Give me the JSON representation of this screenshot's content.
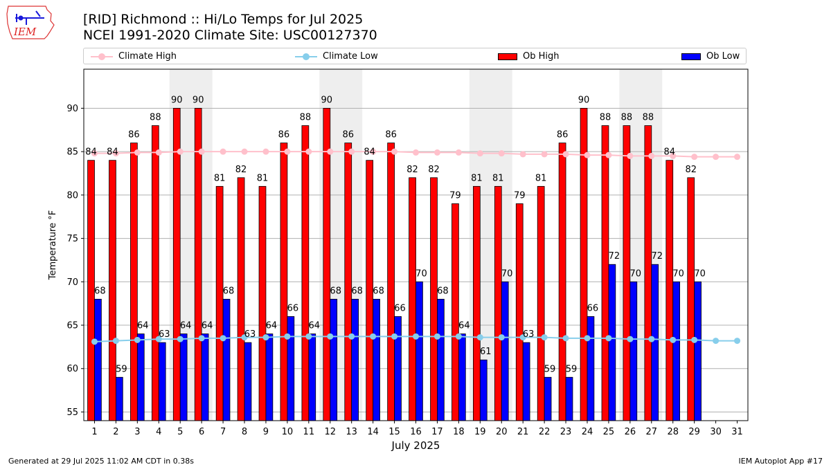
{
  "header": {
    "title_line1": "[RID] Richmond :: Hi/Lo Temps for Jul 2025",
    "title_line2": "NCEI 1991-2020 Climate Site: USC00127370"
  },
  "logo": {
    "text": "IEM"
  },
  "footer": {
    "left": "Generated at 29 Jul 2025 11:02 AM CDT in 0.38s",
    "right": "IEM Autoplot App #17"
  },
  "legend": {
    "items": [
      {
        "label": "Climate High",
        "color": "#ffc0cb",
        "kind": "line"
      },
      {
        "label": "Climate Low",
        "color": "#87ceeb",
        "kind": "line"
      },
      {
        "label": "Ob High",
        "color": "#ff0000",
        "kind": "bar"
      },
      {
        "label": "Ob Low",
        "color": "#0000ff",
        "kind": "bar"
      }
    ],
    "placement": "top, above plot"
  },
  "chart_data": {
    "type": "bar",
    "title": "[RID] Richmond :: Hi/Lo Temps for Jul 2025",
    "xlabel": "July 2025",
    "ylabel": "Temperature °F",
    "ylim": [
      54,
      94.5
    ],
    "yticks": [
      55,
      60,
      65,
      70,
      75,
      80,
      85,
      90
    ],
    "grid": "horizontal",
    "weekend_shading": [
      [
        5,
        6
      ],
      [
        12,
        13
      ],
      [
        19,
        20
      ],
      [
        26,
        27
      ]
    ],
    "categories": [
      "1",
      "2",
      "3",
      "4",
      "5",
      "6",
      "7",
      "8",
      "9",
      "10",
      "11",
      "12",
      "13",
      "14",
      "15",
      "16",
      "17",
      "18",
      "19",
      "20",
      "21",
      "22",
      "23",
      "24",
      "25",
      "26",
      "27",
      "28",
      "29",
      "30",
      "31"
    ],
    "series": [
      {
        "name": "Ob High",
        "type": "bar",
        "color": "#ff0000",
        "values": [
          84,
          84,
          86,
          88,
          90,
          90,
          81,
          82,
          81,
          86,
          88,
          90,
          86,
          84,
          86,
          82,
          82,
          79,
          81,
          81,
          79,
          81,
          86,
          90,
          88,
          88,
          88,
          84,
          82,
          null,
          null
        ]
      },
      {
        "name": "Ob Low",
        "type": "bar",
        "color": "#0000ff",
        "values": [
          68,
          59,
          64,
          63,
          64,
          64,
          68,
          63,
          64,
          66,
          64,
          68,
          68,
          68,
          66,
          70,
          68,
          64,
          61,
          70,
          63,
          59,
          59,
          66,
          72,
          70,
          72,
          70,
          70,
          null,
          null
        ]
      },
      {
        "name": "Climate High",
        "type": "line",
        "color": "#ffc0cb",
        "values": [
          84.8,
          84.8,
          84.9,
          84.9,
          85.0,
          85.0,
          85.0,
          85.0,
          85.0,
          85.0,
          85.0,
          85.0,
          85.0,
          85.0,
          85.0,
          84.9,
          84.9,
          84.9,
          84.8,
          84.8,
          84.7,
          84.7,
          84.7,
          84.6,
          84.6,
          84.5,
          84.5,
          84.5,
          84.4,
          84.4,
          84.4
        ]
      },
      {
        "name": "Climate Low",
        "type": "line",
        "color": "#87ceeb",
        "values": [
          63.1,
          63.2,
          63.3,
          63.4,
          63.4,
          63.5,
          63.5,
          63.6,
          63.6,
          63.7,
          63.7,
          63.7,
          63.7,
          63.7,
          63.7,
          63.7,
          63.7,
          63.7,
          63.6,
          63.6,
          63.6,
          63.6,
          63.5,
          63.5,
          63.5,
          63.4,
          63.4,
          63.3,
          63.3,
          63.2,
          63.2
        ]
      }
    ]
  }
}
